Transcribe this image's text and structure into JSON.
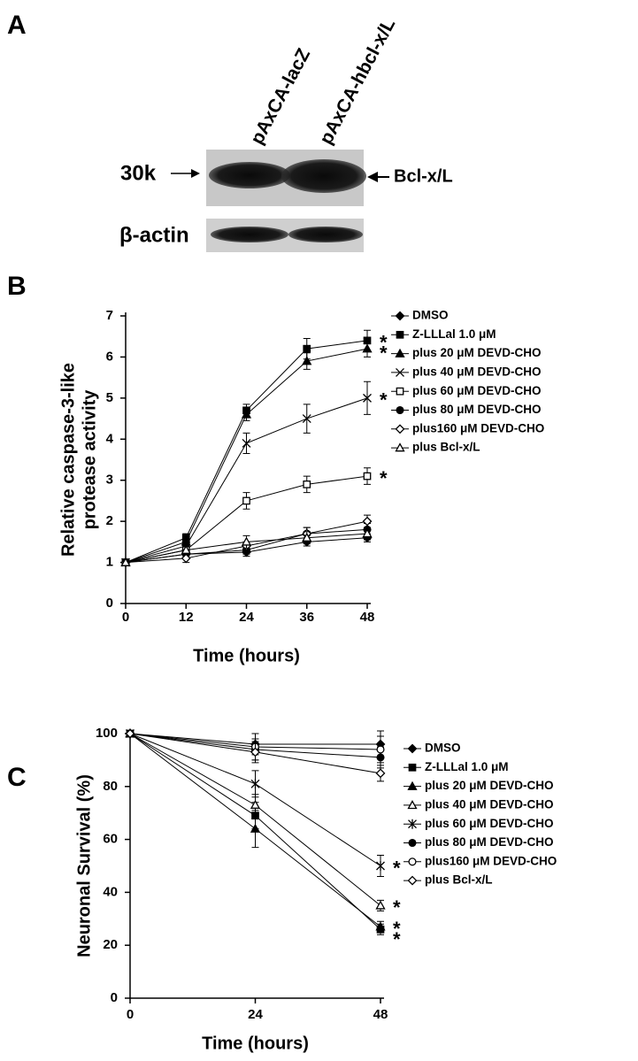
{
  "panel_a": {
    "label": "A",
    "lanes": [
      "pAxCA-lacZ",
      "pAxCA-hbcl-x/L"
    ],
    "band_labels": [
      "30k",
      "β-actin"
    ],
    "arrow_label": "Bcl-x/L"
  },
  "chart_data": [
    {
      "type": "line",
      "panel_label": "B",
      "ylabel": [
        "Relative caspase-3-like",
        "protease activity"
      ],
      "xlabel": "Time (hours)",
      "x": [
        0,
        12,
        24,
        36,
        48
      ],
      "xlim": [
        0,
        48
      ],
      "xticks": [
        0,
        12,
        24,
        36,
        48
      ],
      "ylim": [
        0,
        7
      ],
      "yticks": [
        0,
        1,
        2,
        3,
        4,
        5,
        6,
        7
      ],
      "series": [
        {
          "name": "DMSO",
          "color": "#000",
          "marker": "diamond-filled",
          "values": [
            1,
            1.2,
            1.25,
            1.5,
            1.6
          ],
          "errors": [
            0.05,
            0.1,
            0.1,
            0.1,
            0.1
          ]
        },
        {
          "name": "Z-LLLal 1.0 μM",
          "color": "#000",
          "marker": "square-filled",
          "values": [
            1,
            1.6,
            4.7,
            6.2,
            6.4
          ],
          "errors": [
            0.05,
            0.1,
            0.15,
            0.25,
            0.25
          ],
          "note": "*"
        },
        {
          "name": "plus 20 μM DEVD-CHO",
          "color": "#000",
          "marker": "triangle-filled",
          "values": [
            1,
            1.5,
            4.6,
            5.9,
            6.2
          ],
          "errors": [
            0.05,
            0.1,
            0.15,
            0.2,
            0.2
          ],
          "note": "*"
        },
        {
          "name": "plus 40 μM DEVD-CHO",
          "color": "#000",
          "marker": "x",
          "values": [
            1,
            1.4,
            3.9,
            4.5,
            5.0
          ],
          "errors": [
            0.05,
            0.1,
            0.25,
            0.35,
            0.4
          ],
          "note": "*"
        },
        {
          "name": "plus 60 μM DEVD-CHO",
          "color": "#000",
          "marker": "square-open",
          "values": [
            1,
            1.3,
            2.5,
            2.9,
            3.1
          ],
          "errors": [
            0.05,
            0.1,
            0.2,
            0.2,
            0.2
          ],
          "note": "*"
        },
        {
          "name": "plus 80 μM DEVD-CHO",
          "color": "#000",
          "marker": "circle-filled",
          "values": [
            1,
            1.2,
            1.3,
            1.7,
            1.8
          ],
          "errors": [
            0.05,
            0.1,
            0.1,
            0.15,
            0.15
          ]
        },
        {
          "name": "plus160 μM DEVD-CHO",
          "color": "#000",
          "marker": "diamond-open",
          "values": [
            1,
            1.1,
            1.4,
            1.7,
            2.0
          ],
          "errors": [
            0.05,
            0.1,
            0.1,
            0.15,
            0.15
          ]
        },
        {
          "name": "plus Bcl-x/L",
          "color": "#000",
          "marker": "triangle-open",
          "values": [
            1,
            1.3,
            1.5,
            1.6,
            1.7
          ],
          "errors": [
            0.05,
            0.1,
            0.15,
            0.15,
            0.15
          ]
        }
      ]
    },
    {
      "type": "line",
      "panel_label": "C",
      "ylabel": [
        "Neuronal Survival (%)"
      ],
      "xlabel": "Time (hours)",
      "x": [
        0,
        24,
        48
      ],
      "xlim": [
        0,
        48
      ],
      "xticks": [
        0,
        24,
        48
      ],
      "ylim": [
        0,
        100
      ],
      "yticks": [
        0,
        20,
        40,
        60,
        80,
        100
      ],
      "series": [
        {
          "name": "DMSO",
          "color": "#000",
          "marker": "diamond-filled",
          "values": [
            100,
            96,
            96
          ],
          "errors": [
            1,
            4,
            5
          ]
        },
        {
          "name": "Z-LLLal 1.0 μM",
          "color": "#000",
          "marker": "square-filled",
          "values": [
            100,
            69,
            26
          ],
          "errors": [
            1,
            5,
            2
          ],
          "note": "*"
        },
        {
          "name": "plus 20 μM DEVD-CHO",
          "color": "#000",
          "marker": "triangle-filled",
          "values": [
            100,
            64,
            27
          ],
          "errors": [
            1,
            7,
            2
          ],
          "note": "*"
        },
        {
          "name": "plus 40 μM DEVD-CHO",
          "color": "#000",
          "marker": "triangle-open",
          "values": [
            100,
            73,
            35
          ],
          "errors": [
            1,
            4,
            2
          ],
          "note": "*"
        },
        {
          "name": "plus 60 μM DEVD-CHO",
          "color": "#000",
          "marker": "asterisk",
          "values": [
            100,
            81,
            50
          ],
          "errors": [
            1,
            5,
            4
          ],
          "note": "*"
        },
        {
          "name": "plus 80 μM DEVD-CHO",
          "color": "#000",
          "marker": "circle-filled",
          "values": [
            100,
            94,
            91
          ],
          "errors": [
            1,
            4,
            4
          ]
        },
        {
          "name": "plus160 μM DEVD-CHO",
          "color": "#000",
          "marker": "circle-open",
          "values": [
            100,
            95,
            94
          ],
          "errors": [
            1,
            5,
            5
          ]
        },
        {
          "name": "plus Bcl-x/L",
          "color": "#000",
          "marker": "diamond-open",
          "values": [
            100,
            93,
            85
          ],
          "errors": [
            1,
            4,
            3
          ]
        }
      ]
    }
  ]
}
